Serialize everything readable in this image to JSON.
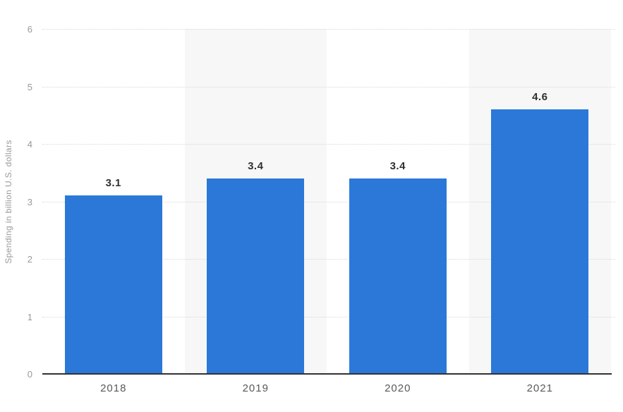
{
  "chart_data": {
    "type": "bar",
    "categories": [
      "2018",
      "2019",
      "2020",
      "2021"
    ],
    "values": [
      3.1,
      3.4,
      3.4,
      4.6
    ],
    "value_labels": [
      "3.1",
      "3.4",
      "3.4",
      "4.6"
    ],
    "title": "",
    "xlabel": "",
    "ylabel": "Spending in billion U.S. dollars",
    "ylim": [
      0,
      6
    ],
    "yticks": [
      "0",
      "1",
      "2",
      "3",
      "4",
      "5",
      "6"
    ],
    "grid": "horizontal dotted gridlines at each y tick; no legend",
    "plot_bands": "alternating light-gray vertical bands behind 2019 and 2021 columns",
    "colors": {
      "bar": "#2b78d8",
      "plot_band": "#f7f7f7",
      "gridline": "#d9d9d9",
      "axis_line": "#323232",
      "tick_label": "#999999",
      "x_label": "#595959",
      "value_label": "#303030",
      "background": "#ffffff"
    }
  }
}
